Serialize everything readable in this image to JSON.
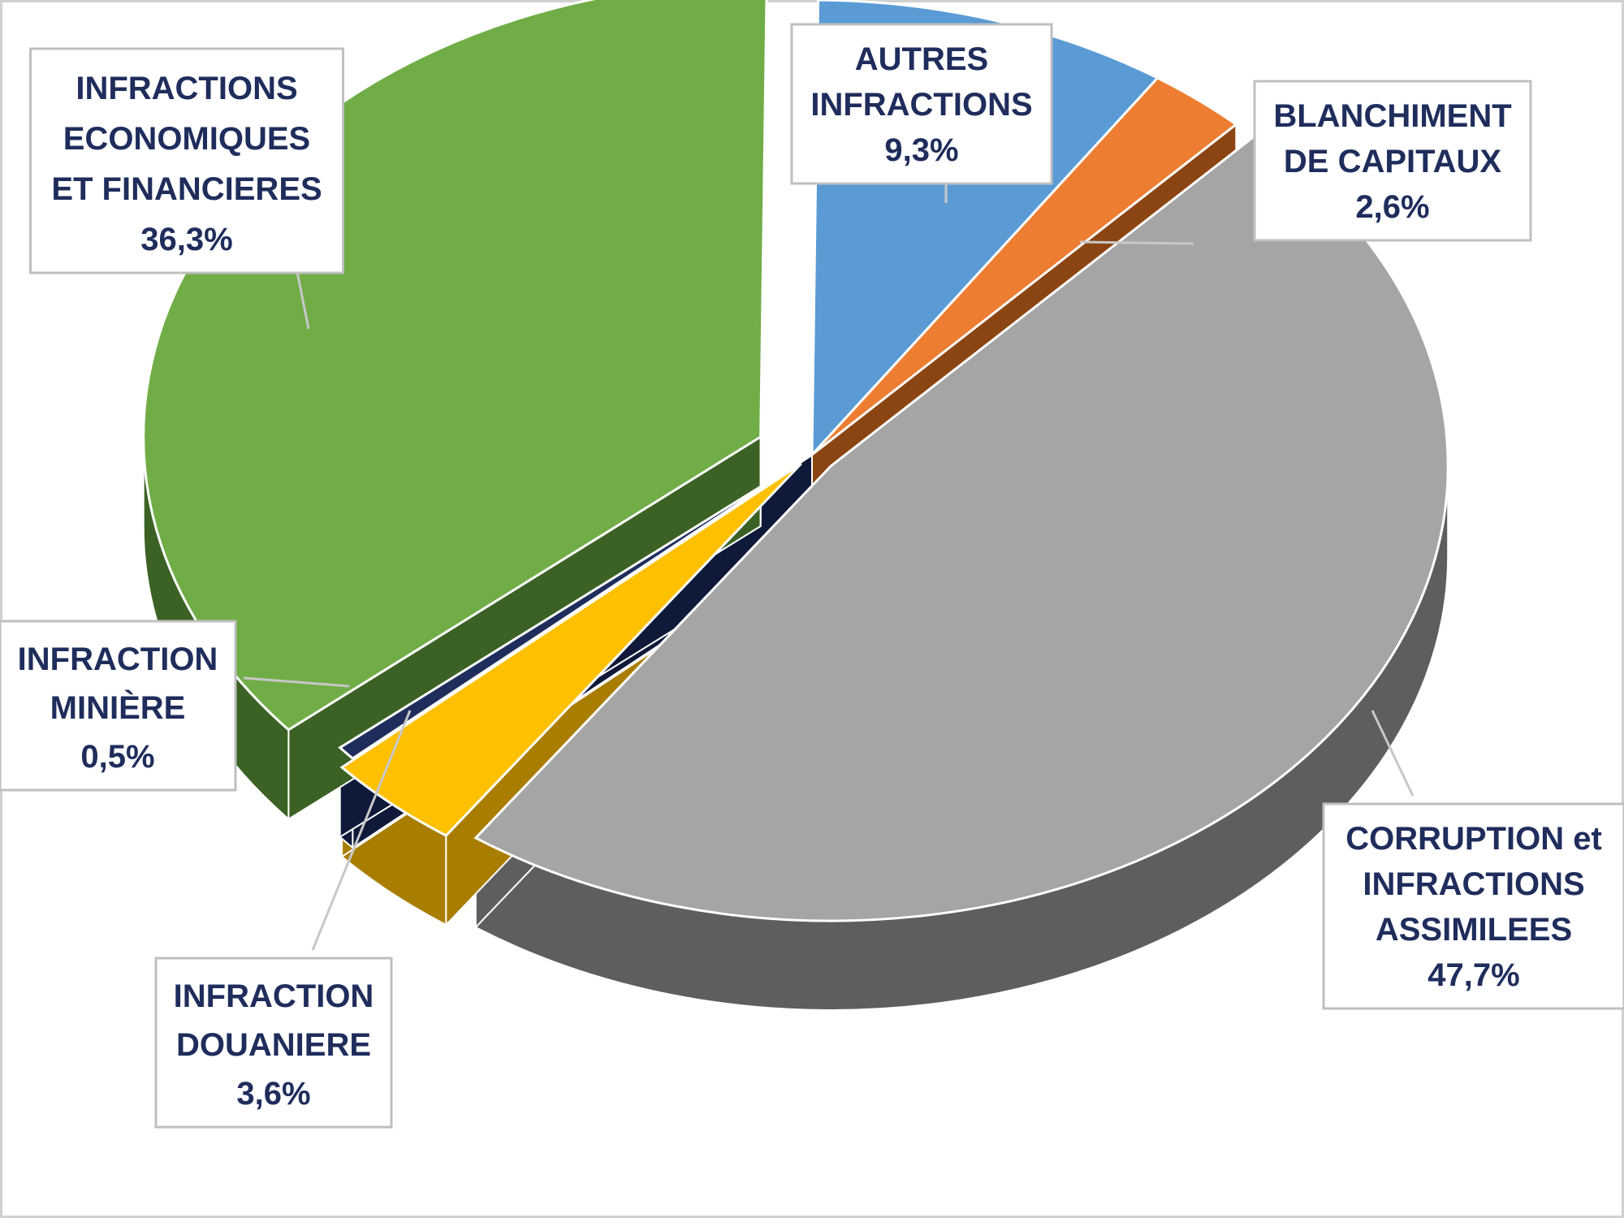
{
  "chart_data": {
    "type": "pie",
    "title": "",
    "unit": "%",
    "slices": [
      {
        "key": "autres",
        "lines": [
          "AUTRES",
          "INFRACTIONS"
        ],
        "value_label": "9,3%",
        "value": 9.3,
        "color": "#5b9bd5",
        "side_color": "#2e6fa8"
      },
      {
        "key": "blanchiment",
        "lines": [
          "BLANCHIMENT",
          "DE CAPITAUX"
        ],
        "value_label": "2,6%",
        "value": 2.6,
        "color": "#ed7d31",
        "side_color": "#8b4513"
      },
      {
        "key": "corruption",
        "lines": [
          "CORRUPTION et",
          "INFRACTIONS",
          "ASSIMILEES"
        ],
        "value_label": "47,7%",
        "value": 47.7,
        "color": "#a5a5a5",
        "side_color": "#5e5e5e"
      },
      {
        "key": "douaniere",
        "lines": [
          "INFRACTION",
          "DOUANIERE"
        ],
        "value_label": "3,6%",
        "value": 3.6,
        "color": "#ffc000",
        "side_color": "#a87d00"
      },
      {
        "key": "miniere",
        "lines": [
          "INFRACTION",
          "MINIÈRE"
        ],
        "value_label": "0,5%",
        "value": 0.5,
        "color": "#1f2d5c",
        "side_color": "#0f1a3a"
      },
      {
        "key": "economiques",
        "lines": [
          "INFRACTIONS",
          "ECONOMIQUES",
          "ET FINANCIERES"
        ],
        "value_label": "36,3%",
        "value": 36.3,
        "color": "#70ad47",
        "side_color": "#3b6224"
      }
    ]
  }
}
